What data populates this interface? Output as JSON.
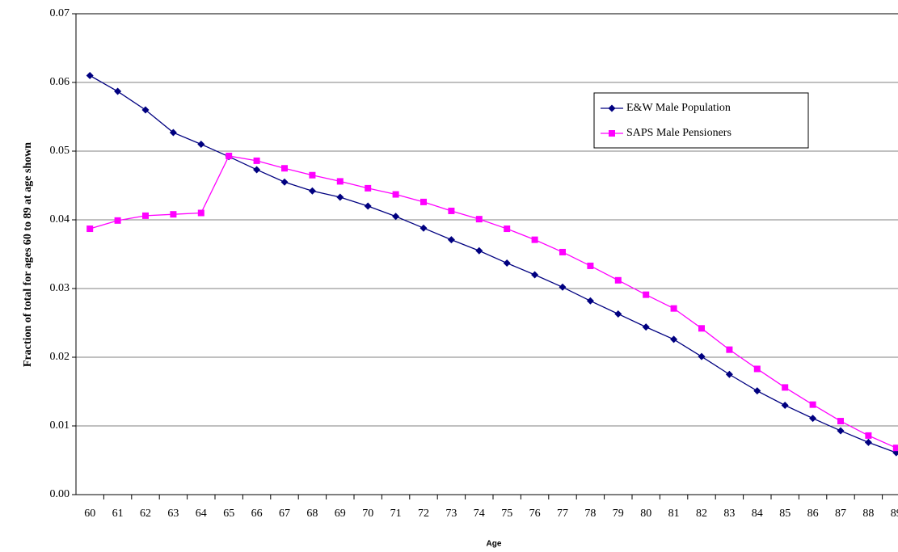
{
  "chart_data": {
    "type": "line",
    "y_label": "Fraction of total for ages 60 to 89 at age shown",
    "x_label": "Age",
    "categories": [
      "60",
      "61",
      "62",
      "63",
      "64",
      "65",
      "66",
      "67",
      "68",
      "69",
      "70",
      "71",
      "72",
      "73",
      "74",
      "75",
      "76",
      "77",
      "78",
      "79",
      "80",
      "81",
      "82",
      "83",
      "84",
      "85",
      "86",
      "87",
      "88",
      "89"
    ],
    "series": [
      {
        "name": "E&W Male Population",
        "color": "#000080",
        "marker": "diamond",
        "values": [
          0.061,
          0.0587,
          0.056,
          0.0527,
          0.051,
          0.0492,
          0.0473,
          0.0455,
          0.0442,
          0.0433,
          0.042,
          0.0405,
          0.0388,
          0.0371,
          0.0355,
          0.0337,
          0.032,
          0.0302,
          0.0282,
          0.0263,
          0.0244,
          0.0226,
          0.0201,
          0.0175,
          0.0151,
          0.013,
          0.0111,
          0.0093,
          0.0076,
          0.0061
        ]
      },
      {
        "name": "SAPS Male Pensioners",
        "color": "#ff00ff",
        "marker": "square",
        "values": [
          0.0387,
          0.0399,
          0.0406,
          0.0408,
          0.041,
          0.0493,
          0.0486,
          0.0475,
          0.0465,
          0.0456,
          0.0446,
          0.0437,
          0.0426,
          0.0413,
          0.0401,
          0.0387,
          0.0371,
          0.0353,
          0.0333,
          0.0312,
          0.0291,
          0.0271,
          0.0242,
          0.0211,
          0.0183,
          0.0156,
          0.0131,
          0.0107,
          0.0086,
          0.0068
        ]
      }
    ],
    "ylim": [
      0,
      0.07
    ],
    "yticks": [
      {
        "value": 0,
        "label": "0.00"
      },
      0.01,
      0.02,
      0.03,
      0.04,
      0.05,
      0.06,
      0.07
    ],
    "grid": true,
    "legend": "upper right"
  }
}
